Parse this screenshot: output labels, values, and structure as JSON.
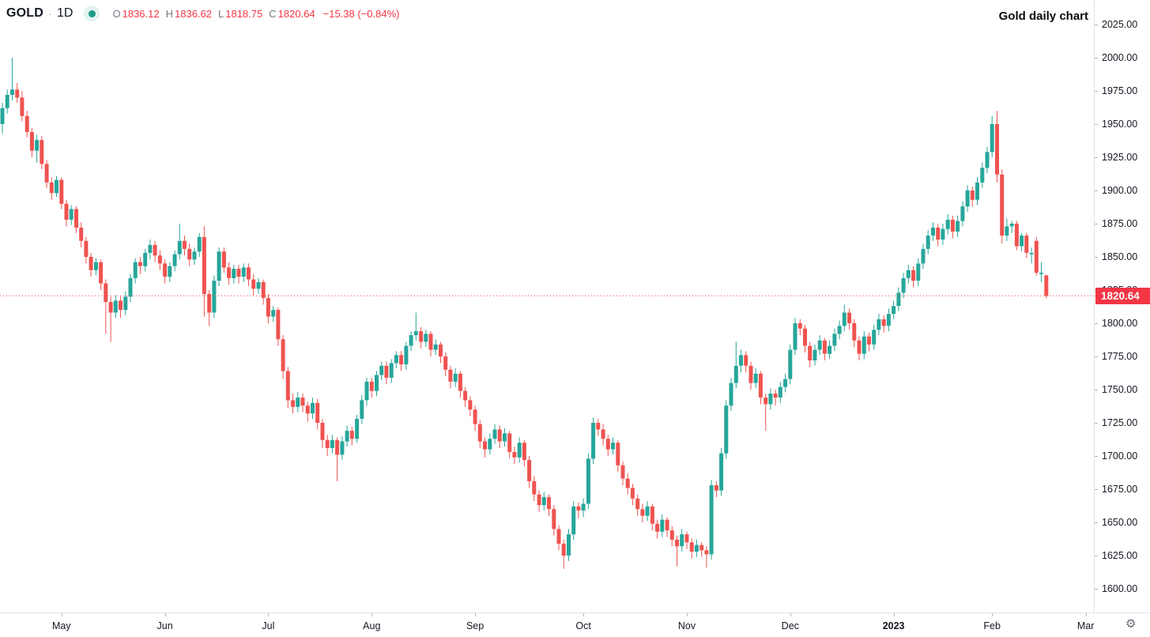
{
  "header": {
    "symbol": "GOLD",
    "separator": "·",
    "interval": "1D",
    "ohlc": {
      "o_key": "O",
      "o_val": "1836.12",
      "h_key": "H",
      "h_val": "1836.62",
      "l_key": "L",
      "l_val": "1818.75",
      "c_key": "C",
      "c_val": "1820.64",
      "change": "−15.38 (−0.84%)"
    }
  },
  "annotation": {
    "title": "Gold daily chart"
  },
  "price_axis": {
    "labels": [
      "2025.00",
      "2000.00",
      "1975.00",
      "1950.00",
      "1925.00",
      "1900.00",
      "1875.00",
      "1850.00",
      "1825.00",
      "1800.00",
      "1775.00",
      "1750.00",
      "1725.00",
      "1700.00",
      "1675.00",
      "1650.00",
      "1625.00",
      "1600.00"
    ],
    "price_tag": "1820.64"
  },
  "time_axis": {
    "labels": [
      {
        "text": "May",
        "i": 12
      },
      {
        "text": "Jun",
        "i": 33
      },
      {
        "text": "Jul",
        "i": 54
      },
      {
        "text": "Aug",
        "i": 75
      },
      {
        "text": "Sep",
        "i": 96
      },
      {
        "text": "Oct",
        "i": 118
      },
      {
        "text": "Nov",
        "i": 139
      },
      {
        "text": "Dec",
        "i": 160
      },
      {
        "text": "2023",
        "i": 181,
        "bold": true
      },
      {
        "text": "Feb",
        "i": 201
      },
      {
        "text": "Mar",
        "i": 220
      }
    ]
  },
  "corner": {
    "gear_glyph": "⚙"
  },
  "colors": {
    "up": "#26a69a",
    "down": "#ef5350",
    "last_line": "#f23645",
    "tag_bg": "#f23645",
    "axis_text": "#131722",
    "muted_text": "#787b86",
    "border": "#e0e3eb"
  },
  "chart_data": {
    "type": "candlestick",
    "title": "Gold daily chart",
    "symbol": "GOLD",
    "interval": "1D",
    "last_price": 1820.64,
    "last_ohlc": {
      "open": 1836.12,
      "high": 1836.62,
      "low": 1818.75,
      "close": 1820.64,
      "change": -15.38,
      "change_pct": -0.84
    },
    "y_axis_ticks": [
      2025,
      2000,
      1975,
      1950,
      1925,
      1900,
      1875,
      1850,
      1825,
      1800,
      1775,
      1750,
      1725,
      1700,
      1675,
      1650,
      1625,
      1600
    ],
    "x_axis_ticks": [
      "May",
      "Jun",
      "Jul",
      "Aug",
      "Sep",
      "Oct",
      "Nov",
      "Dec",
      "2023",
      "Feb",
      "Mar"
    ],
    "visible_price_range": [
      1582,
      2043
    ],
    "grid": false,
    "candles": [
      [
        1950,
        1966,
        1943,
        1962
      ],
      [
        1962,
        1976,
        1958,
        1972
      ],
      [
        1972,
        2000,
        1968,
        1976
      ],
      [
        1976,
        1981,
        1966,
        1970
      ],
      [
        1970,
        1975,
        1952,
        1956
      ],
      [
        1956,
        1960,
        1940,
        1944
      ],
      [
        1944,
        1947,
        1925,
        1930
      ],
      [
        1930,
        1942,
        1921,
        1938
      ],
      [
        1938,
        1941,
        1916,
        1920
      ],
      [
        1920,
        1923,
        1902,
        1906
      ],
      [
        1906,
        1910,
        1893,
        1898
      ],
      [
        1898,
        1911,
        1895,
        1908
      ],
      [
        1908,
        1910,
        1886,
        1890
      ],
      [
        1890,
        1893,
        1873,
        1878
      ],
      [
        1878,
        1889,
        1874,
        1886
      ],
      [
        1886,
        1888,
        1868,
        1872
      ],
      [
        1872,
        1876,
        1857,
        1862
      ],
      [
        1862,
        1865,
        1845,
        1850
      ],
      [
        1850,
        1853,
        1835,
        1840
      ],
      [
        1840,
        1849,
        1836,
        1846
      ],
      [
        1846,
        1848,
        1825,
        1830
      ],
      [
        1830,
        1833,
        1792,
        1816
      ],
      [
        1816,
        1820,
        1786,
        1808
      ],
      [
        1808,
        1821,
        1804,
        1817
      ],
      [
        1817,
        1820,
        1804,
        1810
      ],
      [
        1810,
        1824,
        1806,
        1820
      ],
      [
        1820,
        1837,
        1816,
        1834
      ],
      [
        1834,
        1849,
        1830,
        1846
      ],
      [
        1846,
        1850,
        1837,
        1843
      ],
      [
        1843,
        1856,
        1839,
        1853
      ],
      [
        1853,
        1863,
        1848,
        1859
      ],
      [
        1859,
        1862,
        1846,
        1851
      ],
      [
        1851,
        1855,
        1840,
        1845
      ],
      [
        1845,
        1848,
        1830,
        1835
      ],
      [
        1835,
        1846,
        1831,
        1843
      ],
      [
        1843,
        1855,
        1839,
        1852
      ],
      [
        1852,
        1875,
        1848,
        1862
      ],
      [
        1862,
        1866,
        1851,
        1856
      ],
      [
        1856,
        1860,
        1843,
        1848
      ],
      [
        1848,
        1857,
        1844,
        1854
      ],
      [
        1854,
        1868,
        1850,
        1865
      ],
      [
        1865,
        1873,
        1805,
        1822
      ],
      [
        1822,
        1825,
        1798,
        1808
      ],
      [
        1808,
        1836,
        1804,
        1832
      ],
      [
        1832,
        1857,
        1828,
        1854
      ],
      [
        1854,
        1857,
        1838,
        1842
      ],
      [
        1842,
        1846,
        1829,
        1834
      ],
      [
        1834,
        1844,
        1830,
        1841
      ],
      [
        1841,
        1844,
        1830,
        1835
      ],
      [
        1835,
        1845,
        1831,
        1842
      ],
      [
        1842,
        1845,
        1828,
        1833
      ],
      [
        1833,
        1837,
        1821,
        1826
      ],
      [
        1826,
        1834,
        1822,
        1831
      ],
      [
        1831,
        1833,
        1814,
        1819
      ],
      [
        1819,
        1822,
        1800,
        1805
      ],
      [
        1805,
        1813,
        1801,
        1810
      ],
      [
        1810,
        1812,
        1783,
        1788
      ],
      [
        1788,
        1791,
        1758,
        1764
      ],
      [
        1764,
        1767,
        1736,
        1742
      ],
      [
        1742,
        1747,
        1732,
        1737
      ],
      [
        1737,
        1748,
        1733,
        1744
      ],
      [
        1744,
        1747,
        1733,
        1738
      ],
      [
        1738,
        1741,
        1726,
        1732
      ],
      [
        1732,
        1744,
        1728,
        1740
      ],
      [
        1740,
        1743,
        1720,
        1725
      ],
      [
        1725,
        1728,
        1706,
        1712
      ],
      [
        1712,
        1716,
        1700,
        1706
      ],
      [
        1706,
        1716,
        1702,
        1712
      ],
      [
        1712,
        1714,
        1681,
        1701
      ],
      [
        1701,
        1715,
        1697,
        1711
      ],
      [
        1711,
        1723,
        1707,
        1719
      ],
      [
        1719,
        1722,
        1708,
        1713
      ],
      [
        1713,
        1731,
        1710,
        1728
      ],
      [
        1728,
        1746,
        1724,
        1742
      ],
      [
        1742,
        1759,
        1738,
        1756
      ],
      [
        1756,
        1759,
        1744,
        1749
      ],
      [
        1749,
        1764,
        1745,
        1761
      ],
      [
        1761,
        1771,
        1757,
        1768
      ],
      [
        1768,
        1771,
        1754,
        1759
      ],
      [
        1759,
        1773,
        1755,
        1770
      ],
      [
        1770,
        1779,
        1766,
        1776
      ],
      [
        1776,
        1779,
        1764,
        1769
      ],
      [
        1769,
        1786,
        1765,
        1783
      ],
      [
        1783,
        1794,
        1779,
        1791
      ],
      [
        1791,
        1808,
        1787,
        1794
      ],
      [
        1794,
        1797,
        1781,
        1786
      ],
      [
        1786,
        1795,
        1782,
        1792
      ],
      [
        1792,
        1794,
        1775,
        1780
      ],
      [
        1780,
        1788,
        1776,
        1784
      ],
      [
        1784,
        1786,
        1770,
        1775
      ],
      [
        1775,
        1778,
        1760,
        1765
      ],
      [
        1765,
        1768,
        1751,
        1756
      ],
      [
        1756,
        1766,
        1752,
        1762
      ],
      [
        1762,
        1764,
        1744,
        1749
      ],
      [
        1749,
        1752,
        1737,
        1742
      ],
      [
        1742,
        1745,
        1730,
        1735
      ],
      [
        1735,
        1738,
        1719,
        1724
      ],
      [
        1724,
        1727,
        1706,
        1711
      ],
      [
        1711,
        1714,
        1699,
        1705
      ],
      [
        1705,
        1717,
        1701,
        1713
      ],
      [
        1713,
        1724,
        1709,
        1720
      ],
      [
        1720,
        1723,
        1706,
        1711
      ],
      [
        1711,
        1721,
        1707,
        1717
      ],
      [
        1717,
        1719,
        1698,
        1703
      ],
      [
        1703,
        1707,
        1694,
        1699
      ],
      [
        1699,
        1714,
        1695,
        1710
      ],
      [
        1710,
        1712,
        1692,
        1697
      ],
      [
        1697,
        1700,
        1676,
        1681
      ],
      [
        1681,
        1685,
        1666,
        1671
      ],
      [
        1671,
        1674,
        1658,
        1663
      ],
      [
        1663,
        1673,
        1659,
        1669
      ],
      [
        1669,
        1671,
        1655,
        1660
      ],
      [
        1660,
        1663,
        1640,
        1645
      ],
      [
        1645,
        1648,
        1629,
        1634
      ],
      [
        1634,
        1637,
        1615,
        1625
      ],
      [
        1625,
        1645,
        1621,
        1641
      ],
      [
        1641,
        1666,
        1637,
        1662
      ],
      [
        1662,
        1665,
        1653,
        1659
      ],
      [
        1659,
        1668,
        1654,
        1664
      ],
      [
        1664,
        1702,
        1660,
        1698
      ],
      [
        1698,
        1729,
        1694,
        1725
      ],
      [
        1725,
        1728,
        1715,
        1720
      ],
      [
        1720,
        1724,
        1708,
        1713
      ],
      [
        1713,
        1716,
        1700,
        1705
      ],
      [
        1705,
        1714,
        1701,
        1710
      ],
      [
        1710,
        1712,
        1688,
        1693
      ],
      [
        1693,
        1696,
        1678,
        1683
      ],
      [
        1683,
        1687,
        1671,
        1676
      ],
      [
        1676,
        1679,
        1663,
        1668
      ],
      [
        1668,
        1671,
        1655,
        1660
      ],
      [
        1660,
        1664,
        1650,
        1655
      ],
      [
        1655,
        1666,
        1651,
        1662
      ],
      [
        1662,
        1664,
        1644,
        1649
      ],
      [
        1649,
        1652,
        1638,
        1643
      ],
      [
        1643,
        1656,
        1639,
        1652
      ],
      [
        1652,
        1654,
        1639,
        1644
      ],
      [
        1644,
        1647,
        1632,
        1637
      ],
      [
        1637,
        1640,
        1617,
        1632
      ],
      [
        1632,
        1645,
        1628,
        1641
      ],
      [
        1641,
        1643,
        1630,
        1635
      ],
      [
        1635,
        1638,
        1623,
        1628
      ],
      [
        1628,
        1637,
        1624,
        1633
      ],
      [
        1633,
        1635,
        1624,
        1629
      ],
      [
        1629,
        1632,
        1616,
        1626
      ],
      [
        1626,
        1682,
        1622,
        1678
      ],
      [
        1678,
        1681,
        1669,
        1674
      ],
      [
        1674,
        1706,
        1670,
        1702
      ],
      [
        1702,
        1742,
        1698,
        1738
      ],
      [
        1738,
        1759,
        1734,
        1755
      ],
      [
        1755,
        1786,
        1751,
        1768
      ],
      [
        1768,
        1780,
        1763,
        1776
      ],
      [
        1776,
        1779,
        1763,
        1768
      ],
      [
        1768,
        1771,
        1750,
        1755
      ],
      [
        1755,
        1766,
        1751,
        1762
      ],
      [
        1762,
        1764,
        1739,
        1744
      ],
      [
        1744,
        1747,
        1719,
        1739
      ],
      [
        1739,
        1751,
        1735,
        1747
      ],
      [
        1747,
        1750,
        1738,
        1744
      ],
      [
        1744,
        1756,
        1740,
        1752
      ],
      [
        1752,
        1762,
        1748,
        1758
      ],
      [
        1758,
        1784,
        1754,
        1780
      ],
      [
        1780,
        1804,
        1776,
        1800
      ],
      [
        1800,
        1803,
        1791,
        1796
      ],
      [
        1796,
        1799,
        1778,
        1783
      ],
      [
        1783,
        1786,
        1767,
        1772
      ],
      [
        1772,
        1784,
        1768,
        1780
      ],
      [
        1780,
        1791,
        1776,
        1787
      ],
      [
        1787,
        1789,
        1772,
        1777
      ],
      [
        1777,
        1787,
        1773,
        1783
      ],
      [
        1783,
        1796,
        1779,
        1792
      ],
      [
        1792,
        1802,
        1788,
        1798
      ],
      [
        1798,
        1814,
        1794,
        1808
      ],
      [
        1808,
        1811,
        1795,
        1800
      ],
      [
        1800,
        1803,
        1782,
        1787
      ],
      [
        1787,
        1790,
        1772,
        1777
      ],
      [
        1777,
        1794,
        1773,
        1790
      ],
      [
        1790,
        1793,
        1779,
        1784
      ],
      [
        1784,
        1799,
        1780,
        1795
      ],
      [
        1795,
        1807,
        1791,
        1803
      ],
      [
        1803,
        1806,
        1793,
        1798
      ],
      [
        1798,
        1811,
        1794,
        1807
      ],
      [
        1807,
        1817,
        1803,
        1813
      ],
      [
        1813,
        1827,
        1809,
        1823
      ],
      [
        1823,
        1838,
        1819,
        1834
      ],
      [
        1834,
        1844,
        1830,
        1840
      ],
      [
        1840,
        1843,
        1827,
        1832
      ],
      [
        1832,
        1849,
        1828,
        1845
      ],
      [
        1845,
        1860,
        1841,
        1856
      ],
      [
        1856,
        1870,
        1852,
        1866
      ],
      [
        1866,
        1876,
        1862,
        1872
      ],
      [
        1872,
        1875,
        1858,
        1863
      ],
      [
        1863,
        1875,
        1859,
        1871
      ],
      [
        1871,
        1882,
        1867,
        1878
      ],
      [
        1878,
        1881,
        1864,
        1869
      ],
      [
        1869,
        1881,
        1865,
        1877
      ],
      [
        1877,
        1892,
        1873,
        1888
      ],
      [
        1888,
        1904,
        1884,
        1900
      ],
      [
        1900,
        1903,
        1888,
        1893
      ],
      [
        1893,
        1910,
        1889,
        1906
      ],
      [
        1906,
        1921,
        1902,
        1917
      ],
      [
        1917,
        1933,
        1913,
        1929
      ],
      [
        1929,
        1956,
        1925,
        1950
      ],
      [
        1950,
        1960,
        1906,
        1912
      ],
      [
        1912,
        1916,
        1860,
        1866
      ],
      [
        1866,
        1879,
        1862,
        1873
      ],
      [
        1873,
        1877,
        1868,
        1875
      ],
      [
        1875,
        1877,
        1855,
        1858
      ],
      [
        1858,
        1868,
        1854,
        1866
      ],
      [
        1866,
        1868,
        1849,
        1853
      ],
      [
        1852,
        1857,
        1845,
        1853
      ],
      [
        1862,
        1865,
        1836,
        1838
      ],
      [
        1837,
        1846,
        1831,
        1838
      ],
      [
        1836.1,
        1836.6,
        1818.8,
        1820.6
      ]
    ]
  }
}
